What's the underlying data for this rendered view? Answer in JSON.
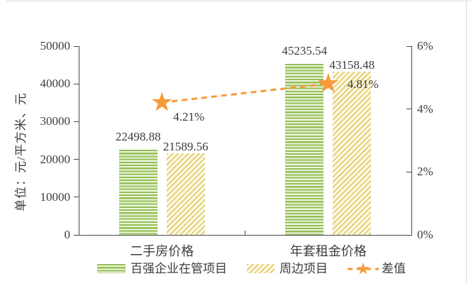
{
  "chart_data": {
    "type": "bar",
    "subtype": "grouped-bars-with-line-overlay",
    "categories": [
      "二手房价格",
      "年套租金价格"
    ],
    "series": [
      {
        "name": "百强企业在管项目",
        "chart_type": "bar",
        "axis": "left",
        "values": [
          22498.88,
          45235.54
        ],
        "value_labels": [
          "22498.88",
          "45235.54"
        ],
        "pattern": "green-horizontal-stripes",
        "color": "#94bf55"
      },
      {
        "name": "周边项目",
        "chart_type": "bar",
        "axis": "left",
        "values": [
          21589.56,
          43158.48
        ],
        "value_labels": [
          "21589.56",
          "43158.48"
        ],
        "pattern": "yellow-diagonal-stripes",
        "color": "#e7d483"
      },
      {
        "name": "差值",
        "chart_type": "line",
        "axis": "right",
        "values": [
          4.21,
          4.81
        ],
        "value_labels": [
          "4.21%",
          "4.81%"
        ],
        "line_style": "dashed",
        "marker": "star",
        "color": "#f79a3a"
      }
    ],
    "left_axis": {
      "title": "单位：元/平方米、元",
      "min": 0,
      "max": 50000,
      "tick_labels": [
        "0",
        "10000",
        "20000",
        "30000",
        "40000",
        "50000"
      ]
    },
    "right_axis": {
      "min": 0,
      "max": 6,
      "unit": "%",
      "tick_labels": [
        "0%",
        "2%",
        "4%",
        "6%"
      ]
    },
    "legend_position": "bottom",
    "grid": false
  }
}
